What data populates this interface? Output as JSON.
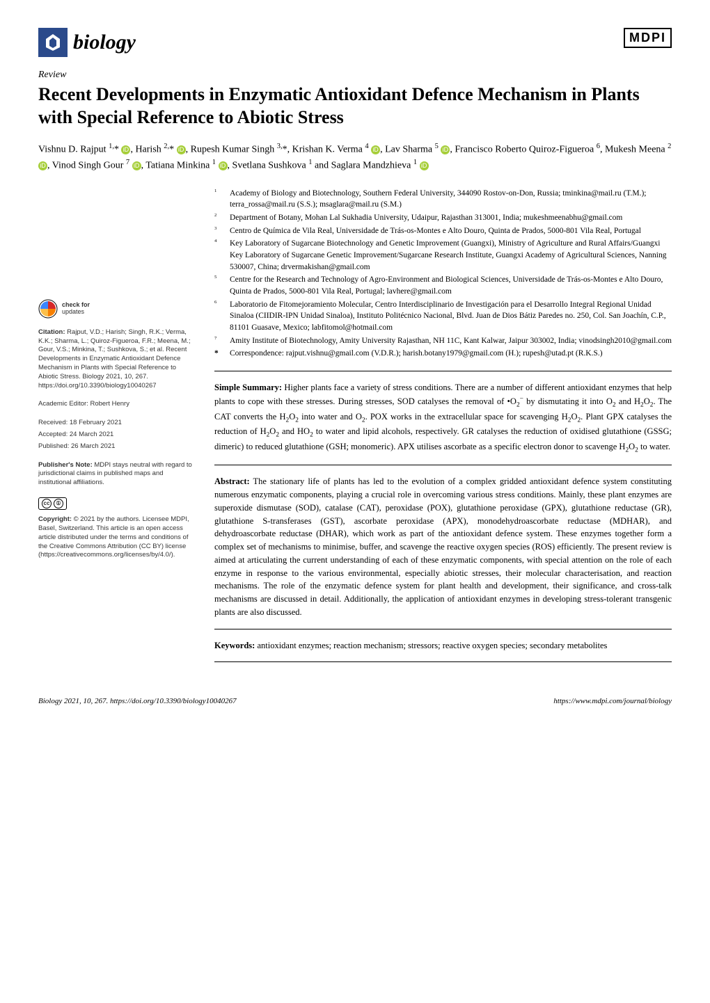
{
  "journal": {
    "name": "biology",
    "publisher": "MDPI",
    "logo_bg": "#2b4a8b"
  },
  "article": {
    "type": "Review",
    "title": "Recent Developments in Enzymatic Antioxidant Defence Mechanism in Plants with Special Reference to Abiotic Stress"
  },
  "authors_html": "Vishnu D. Rajput <sup>1,</sup>* <span class='orcid'>iD</span>, Harish <sup>2,</sup>* <span class='orcid'>iD</span>, Rupesh Kumar Singh <sup>3,</sup>*, Krishan K. Verma <sup>4</sup> <span class='orcid'>iD</span>, Lav Sharma <sup>5</sup> <span class='orcid'>iD</span>, Francisco Roberto Quiroz-Figueroa <sup>6</sup>, Mukesh Meena <sup>2</sup> <span class='orcid'>iD</span>, Vinod Singh Gour <sup>7</sup> <span class='orcid'>iD</span>, Tatiana Minkina <sup>1</sup> <span class='orcid'>iD</span>, Svetlana Sushkova <sup>1</sup> and Saglara Mandzhieva <sup>1</sup> <span class='orcid'>iD</span>",
  "affiliations": [
    {
      "n": "1",
      "text": "Academy of Biology and Biotechnology, Southern Federal University, 344090 Rostov-on-Don, Russia; tminkina@mail.ru (T.M.); terra_rossa@mail.ru (S.S.); msaglara@mail.ru (S.M.)"
    },
    {
      "n": "2",
      "text": "Department of Botany, Mohan Lal Sukhadia University, Udaipur, Rajasthan 313001, India; mukeshmeenabhu@gmail.com"
    },
    {
      "n": "3",
      "text": "Centro de Química de Vila Real, Universidade de Trás-os-Montes e Alto Douro, Quinta de Prados, 5000-801 Vila Real, Portugal"
    },
    {
      "n": "4",
      "text": "Key Laboratory of Sugarcane Biotechnology and Genetic Improvement (Guangxi), Ministry of Agriculture and Rural Affairs/Guangxi Key Laboratory of Sugarcane Genetic Improvement/Sugarcane Research Institute, Guangxi Academy of Agricultural Sciences, Nanning 530007, China; drvermakishan@gmail.com"
    },
    {
      "n": "5",
      "text": "Centre for the Research and Technology of Agro-Environment and Biological Sciences, Universidade de Trás-os-Montes e Alto Douro, Quinta de Prados, 5000-801 Vila Real, Portugal; lavhere@gmail.com"
    },
    {
      "n": "6",
      "text": "Laboratorio de Fitomejoramiento Molecular, Centro Interdisciplinario de Investigación para el Desarrollo Integral Regional Unidad Sinaloa (CIIDIR-IPN Unidad Sinaloa), Instituto Politécnico Nacional, Blvd. Juan de Dios Bátiz Paredes no. 250, Col. San Joachín, C.P., 81101 Guasave, Mexico; labfitomol@hotmail.com"
    },
    {
      "n": "7",
      "text": "Amity Institute of Biotechnology, Amity University Rajasthan, NH 11C, Kant Kalwar, Jaipur 303002, India; vinodsingh2010@gmail.com"
    }
  ],
  "correspondence": {
    "star": "*",
    "text": "Correspondence: rajput.vishnu@gmail.com (V.D.R.); harish.botany1979@gmail.com (H.); rupesh@utad.pt (R.K.S.)"
  },
  "simple_summary": {
    "heading": "Simple Summary:",
    "body_html": "Higher plants face a variety of stress conditions. There are a number of different antioxidant enzymes that help plants to cope with these stresses. During stresses, SOD catalyses the removal of •O<sub>2</sub><sup>−</sup> by dismutating it into O<sub>2</sub> and H<sub>2</sub>O<sub>2</sub>. The CAT converts the H<sub>2</sub>O<sub>2</sub> into water and O<sub>2</sub>. POX works in the extracellular space for scavenging H<sub>2</sub>O<sub>2</sub>. Plant GPX catalyses the reduction of H<sub>2</sub>O<sub>2</sub> and HO<sub>2</sub> to water and lipid alcohols, respectively. GR catalyses the reduction of oxidised glutathione (GSSG; dimeric) to reduced glutathione (GSH; monomeric). APX utilises ascorbate as a specific electron donor to scavenge H<sub>2</sub>O<sub>2</sub> to water."
  },
  "abstract": {
    "heading": "Abstract:",
    "body": "The stationary life of plants has led to the evolution of a complex gridded antioxidant defence system constituting numerous enzymatic components, playing a crucial role in overcoming various stress conditions. Mainly, these plant enzymes are superoxide dismutase (SOD), catalase (CAT), peroxidase (POX), glutathione peroxidase (GPX), glutathione reductase (GR), glutathione S-transferases (GST), ascorbate peroxidase (APX), monodehydroascorbate reductase (MDHAR), and dehydroascorbate reductase (DHAR), which work as part of the antioxidant defence system. These enzymes together form a complex set of mechanisms to minimise, buffer, and scavenge the reactive oxygen species (ROS) efficiently. The present review is aimed at articulating the current understanding of each of these enzymatic components, with special attention on the role of each enzyme in response to the various environmental, especially abiotic stresses, their molecular characterisation, and reaction mechanisms. The role of the enzymatic defence system for plant health and development, their significance, and cross-talk mechanisms are discussed in detail. Additionally, the application of antioxidant enzymes in developing stress-tolerant transgenic plants are also discussed."
  },
  "keywords": {
    "heading": "Keywords:",
    "body": "antioxidant enzymes; reaction mechanism; stressors; reactive oxygen species; secondary metabolites"
  },
  "sidebar": {
    "check_updates": {
      "top": "check for",
      "bottom": "updates"
    },
    "citation_label": "Citation:",
    "citation_text": "Rajput, V.D.; Harish; Singh, R.K.; Verma, K.K.; Sharma, L.; Quiroz-Figueroa, F.R.; Meena, M.; Gour, V.S.; Minkina, T.; Sushkova, S.; et al. Recent Developments in Enzymatic Antioxidant Defence Mechanism in Plants with Special Reference to Abiotic Stress. Biology 2021, 10, 267. https://doi.org/10.3390/biology10040267",
    "editor_label": "Academic Editor:",
    "editor": "Robert Henry",
    "received_label": "Received:",
    "received": "18 February 2021",
    "accepted_label": "Accepted:",
    "accepted": "24 March 2021",
    "published_label": "Published:",
    "published": "26 March 2021",
    "pubnote_label": "Publisher's Note:",
    "pubnote": "MDPI stays neutral with regard to jurisdictional claims in published maps and institutional affiliations.",
    "copyright_label": "Copyright:",
    "copyright": "© 2021 by the authors. Licensee MDPI, Basel, Switzerland. This article is an open access article distributed under the terms and conditions of the Creative Commons Attribution (CC BY) license (https://creativecommons.org/licenses/by/4.0/)."
  },
  "footer": {
    "left": "Biology 2021, 10, 267. https://doi.org/10.3390/biology10040267",
    "right": "https://www.mdpi.com/journal/biology"
  },
  "colors": {
    "orcid": "#a6ce39"
  }
}
